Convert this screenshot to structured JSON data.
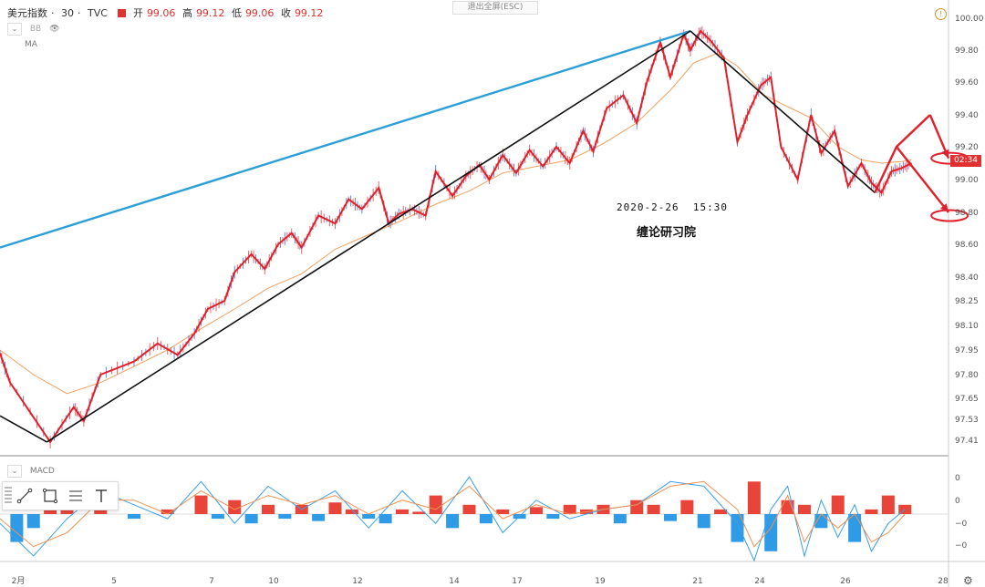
{
  "header": {
    "symbol": "美元指数",
    "interval": "30",
    "source": "TVC",
    "open_label": "开",
    "open": "99.06",
    "high_label": "高",
    "high": "99.12",
    "low_label": "低",
    "low": "99.06",
    "close_label": "收",
    "close": "99.12"
  },
  "exit_fullscreen_label": "退出全屏(ESC)",
  "indicators": {
    "bb_label": "BB",
    "ma_label": "MA",
    "macd_label": "MACD"
  },
  "countdown": "02:34",
  "annotations": {
    "date_text": "2020-2-26  15:30",
    "author_text": "缠论研习院"
  },
  "colors": {
    "red_line": "#e0202a",
    "blue_line": "#2b9fd6",
    "black_line": "#111111",
    "ma_orange": "#f0a060",
    "up_candle": "#e04040",
    "down_candle": "#3b6fd6",
    "macd_pos": "#e8443a",
    "macd_neg": "#2f9be6",
    "macd_line": "#3aa0e8",
    "signal_line": "#f09050"
  },
  "chart_data": [
    {
      "type": "line",
      "title": "美元指数 · 30 · TVC",
      "x_ticks": [
        "2月",
        "5",
        "7",
        "10",
        "12",
        "14",
        "17",
        "19",
        "21",
        "24",
        "26",
        "28"
      ],
      "y_ticks": [
        "100.00",
        "99.80",
        "99.60",
        "99.40",
        "99.20",
        "99.00",
        "98.80",
        "98.60",
        "98.40",
        "98.25",
        "98.10",
        "97.95",
        "97.80",
        "97.65",
        "97.53",
        "97.41"
      ],
      "ylim": [
        97.37,
        100.08
      ],
      "price_path": {
        "name": "美元指数",
        "x": [
          0.0,
          0.3,
          1.5,
          2.2,
          2.5,
          3.0,
          4.0,
          4.7,
          5.3,
          5.8,
          6.2,
          6.7,
          7.0,
          7.5,
          7.9,
          8.3,
          8.7,
          9.0,
          9.5,
          10.0,
          10.4,
          10.8,
          11.3,
          11.6,
          11.9,
          12.3,
          12.7,
          13.0,
          13.5,
          13.9,
          14.3,
          14.6,
          15.0,
          15.4,
          15.8,
          16.2,
          16.6,
          17.0,
          17.4,
          17.7,
          18.1,
          18.6,
          19.0,
          19.3,
          19.7,
          20.0,
          20.4,
          20.6,
          20.9,
          21.2,
          21.6,
          22.0,
          22.3,
          22.7,
          23.0,
          23.3,
          23.8,
          24.2,
          24.5,
          24.9,
          25.3,
          25.7,
          26.0,
          26.3,
          26.6,
          26.9,
          27.2
        ],
        "values": [
          97.93,
          97.75,
          97.4,
          97.6,
          97.52,
          97.8,
          97.88,
          97.99,
          97.92,
          98.05,
          98.2,
          98.25,
          98.43,
          98.54,
          98.45,
          98.6,
          98.67,
          98.58,
          98.78,
          98.73,
          98.88,
          98.82,
          98.95,
          98.73,
          98.79,
          98.82,
          98.78,
          99.05,
          98.9,
          99.02,
          99.09,
          99.0,
          99.15,
          99.04,
          99.18,
          99.08,
          99.2,
          99.1,
          99.3,
          99.17,
          99.44,
          99.52,
          99.35,
          99.6,
          99.85,
          99.63,
          99.9,
          99.8,
          99.92,
          99.86,
          99.75,
          99.23,
          99.4,
          99.58,
          99.63,
          99.2,
          99.0,
          99.4,
          99.16,
          99.3,
          98.96,
          99.1,
          98.98,
          98.92,
          99.05,
          99.07,
          99.1
        ]
      },
      "ma_series": {
        "x": [
          0.0,
          1.0,
          2.0,
          3.0,
          4.0,
          5.0,
          6.0,
          7.0,
          8.0,
          9.0,
          10.0,
          11.0,
          12.0,
          13.0,
          14.0,
          15.0,
          16.0,
          17.0,
          18.0,
          19.0,
          20.0,
          20.7,
          21.4,
          22.0,
          22.8,
          23.5,
          24.2,
          25.0,
          25.7,
          26.3,
          26.9,
          27.2
        ],
        "values": [
          97.95,
          97.8,
          97.68,
          97.75,
          97.85,
          97.95,
          98.08,
          98.2,
          98.33,
          98.42,
          98.57,
          98.66,
          98.75,
          98.85,
          98.93,
          99.04,
          99.08,
          99.12,
          99.22,
          99.35,
          99.55,
          99.72,
          99.78,
          99.7,
          99.52,
          99.45,
          99.38,
          99.2,
          99.12,
          99.1,
          99.11,
          99.12
        ]
      },
      "drawn_lines": [
        {
          "name": "blue-trendline",
          "x": [
            0.0,
            20.6
          ],
          "values": [
            98.58,
            99.92
          ]
        },
        {
          "name": "black-line-down-1",
          "x": [
            0.0,
            1.4
          ],
          "values": [
            97.55,
            97.4
          ]
        },
        {
          "name": "black-line-up",
          "x": [
            1.4,
            20.6
          ],
          "values": [
            97.4,
            99.92
          ]
        },
        {
          "name": "black-line-down-2",
          "x": [
            20.6,
            26.1
          ],
          "values": [
            99.92,
            98.92
          ]
        },
        {
          "name": "projection-arrow-up",
          "x": [
            26.1,
            26.75,
            27.75
          ],
          "values": [
            98.92,
            99.2,
            99.4
          ]
        },
        {
          "name": "projection-arrow-upper-target",
          "x": [
            27.75,
            28.3
          ],
          "values": [
            99.4,
            99.13
          ]
        },
        {
          "name": "projection-arrow-lower-target",
          "x": [
            26.75,
            28.3
          ],
          "values": [
            99.2,
            98.8
          ]
        }
      ],
      "target_ellipses": [
        {
          "name": "upper-target",
          "x": 28.25,
          "value": 99.13
        },
        {
          "name": "lower-target",
          "x": 28.25,
          "value": 98.78
        }
      ]
    },
    {
      "type": "bar",
      "title": "MACD",
      "y_ticks": [
        "0",
        "0",
        "−0",
        "−0",
        "−0"
      ],
      "ylim": [
        -1.0,
        1.0
      ],
      "histogram": {
        "x": [
          0.5,
          1.0,
          1.5,
          2.0,
          3.0,
          4.0,
          5.0,
          6.0,
          6.5,
          7.0,
          7.5,
          8.0,
          8.5,
          9.0,
          9.5,
          10.0,
          10.5,
          11.0,
          11.5,
          12.0,
          12.5,
          13.0,
          13.5,
          14.0,
          14.5,
          15.0,
          15.5,
          16.0,
          16.5,
          17.0,
          17.5,
          18.0,
          18.5,
          19.0,
          19.5,
          20.0,
          20.5,
          21.0,
          21.5,
          22.0,
          22.5,
          23.0,
          23.5,
          24.0,
          24.5,
          25.0,
          25.5,
          26.0,
          26.5,
          27.0
        ],
        "values": [
          -0.6,
          -0.3,
          0.2,
          0.1,
          0.15,
          -0.1,
          0.1,
          0.4,
          -0.1,
          0.3,
          -0.2,
          0.2,
          -0.1,
          0.2,
          -0.15,
          0.25,
          0.1,
          -0.1,
          -0.2,
          0.1,
          0.05,
          0.4,
          -0.3,
          0.2,
          -0.2,
          0.1,
          -0.1,
          0.15,
          -0.1,
          0.2,
          0.1,
          0.2,
          -0.2,
          0.3,
          0.2,
          -0.15,
          0.3,
          -0.3,
          0.1,
          -0.6,
          0.7,
          -0.8,
          0.3,
          0.2,
          -0.3,
          0.4,
          -0.6,
          0.1,
          0.4,
          0.2
        ]
      },
      "macd_line": {
        "x": [
          0.0,
          1.0,
          2.0,
          3.0,
          4.0,
          5.0,
          6.0,
          7.0,
          8.0,
          9.0,
          10.0,
          11.0,
          12.0,
          13.0,
          14.0,
          15.0,
          16.0,
          17.0,
          18.0,
          19.0,
          20.0,
          21.0,
          22.0,
          22.5,
          23.0,
          23.5,
          24.0,
          24.5,
          25.0,
          25.5,
          26.0,
          26.5,
          27.0
        ],
        "values": [
          -0.2,
          -0.9,
          -0.1,
          0.5,
          0.2,
          -0.1,
          0.7,
          -0.2,
          0.6,
          0.1,
          0.5,
          -0.3,
          0.5,
          -0.2,
          0.8,
          -0.4,
          0.3,
          -0.1,
          0.1,
          0.2,
          0.7,
          0.6,
          -0.2,
          -1.0,
          0.1,
          0.6,
          -0.9,
          0.3,
          -0.5,
          0.2,
          -0.8,
          -0.2,
          0.1
        ]
      },
      "signal_line": {
        "x": [
          0.0,
          1.0,
          2.0,
          3.0,
          4.0,
          5.0,
          6.0,
          7.0,
          8.0,
          9.0,
          10.0,
          11.0,
          12.0,
          13.0,
          14.0,
          15.0,
          16.0,
          17.0,
          18.0,
          19.0,
          20.0,
          21.0,
          22.0,
          22.5,
          23.0,
          23.5,
          24.0,
          24.5,
          25.0,
          25.5,
          26.0,
          26.5,
          27.0
        ],
        "values": [
          -0.1,
          -0.7,
          -0.4,
          0.3,
          0.3,
          0.0,
          0.5,
          0.1,
          0.4,
          0.2,
          0.4,
          0.0,
          0.3,
          0.1,
          0.6,
          -0.1,
          0.2,
          0.0,
          0.1,
          0.2,
          0.6,
          0.7,
          0.1,
          -0.7,
          -0.3,
          0.4,
          -0.6,
          0.0,
          -0.3,
          0.0,
          -0.6,
          -0.4,
          0.0
        ]
      }
    }
  ]
}
